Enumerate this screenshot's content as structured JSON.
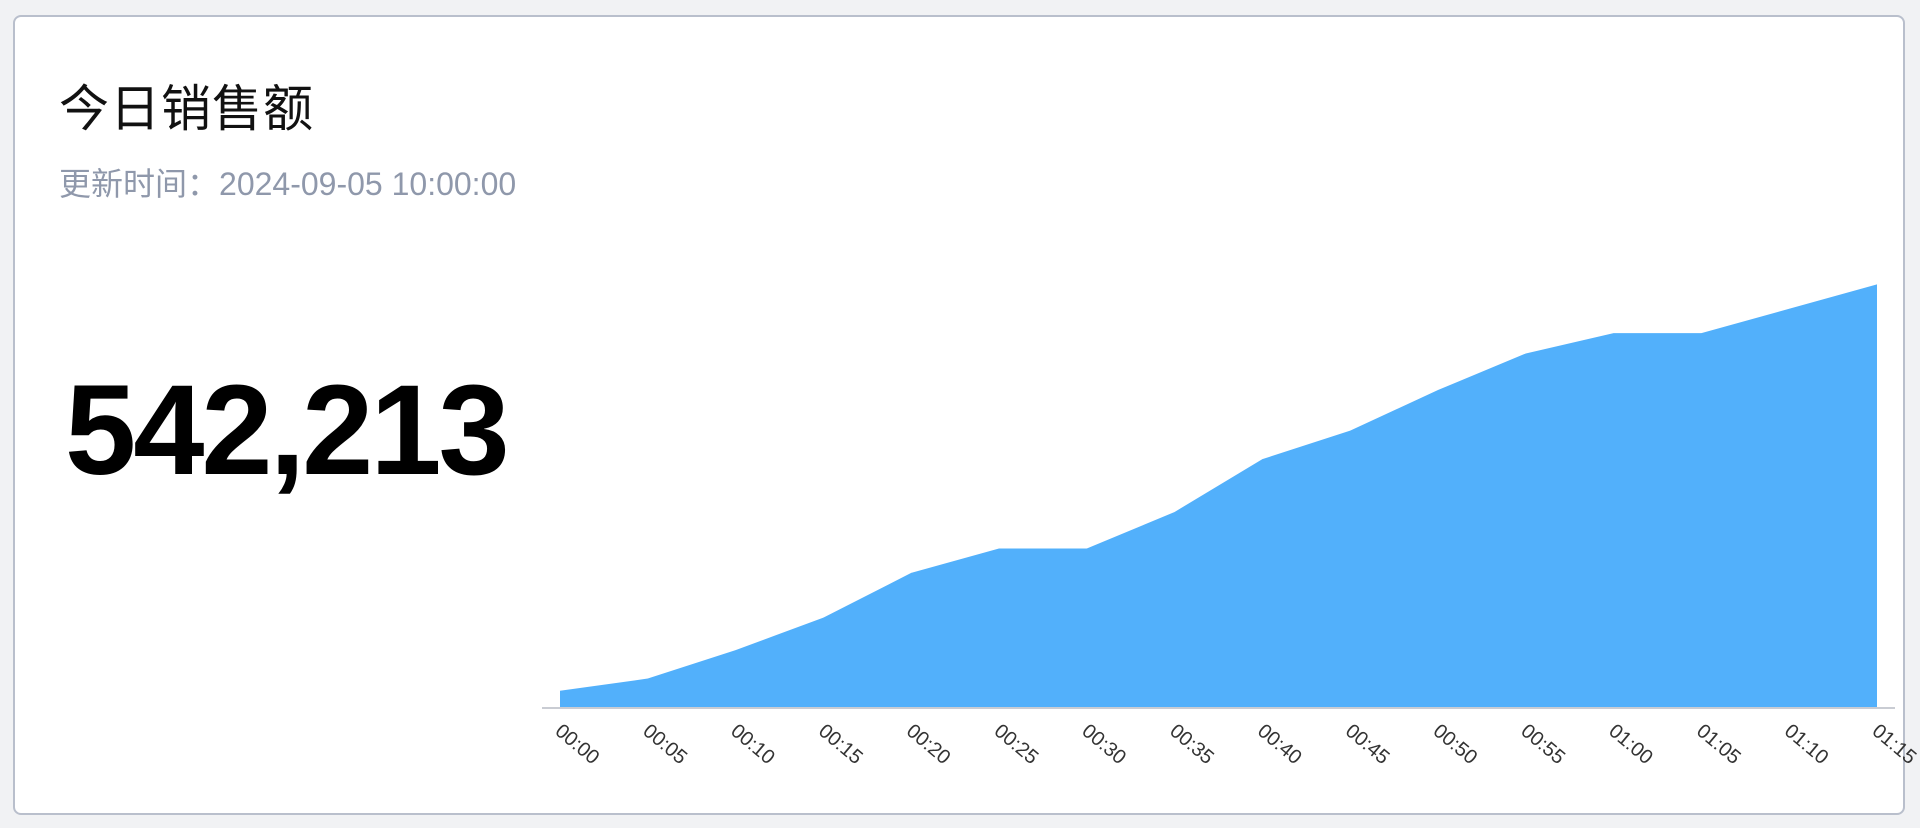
{
  "card": {
    "title": "今日销售额",
    "updated_label": "更新时间：",
    "updated_time": "2024-09-05 10:00:00",
    "value": "542,213"
  },
  "chart_data": {
    "type": "area",
    "x": [
      "00:00",
      "00:05",
      "00:10",
      "00:15",
      "00:20",
      "00:25",
      "00:30",
      "00:35",
      "00:40",
      "00:45",
      "00:50",
      "00:55",
      "01:00",
      "01:05",
      "01:10",
      "01:15"
    ],
    "series": [
      {
        "values": [
          4,
          7,
          14,
          22,
          33,
          39,
          39,
          48,
          61,
          68,
          78,
          87,
          92,
          92,
          98,
          104
        ]
      }
    ],
    "ylim": [
      0,
      110
    ],
    "grid": false,
    "legend": "none",
    "colors": {
      "fill": "#52b0fb",
      "axis": "#c9ccd3",
      "tick_label": "#333333"
    }
  }
}
